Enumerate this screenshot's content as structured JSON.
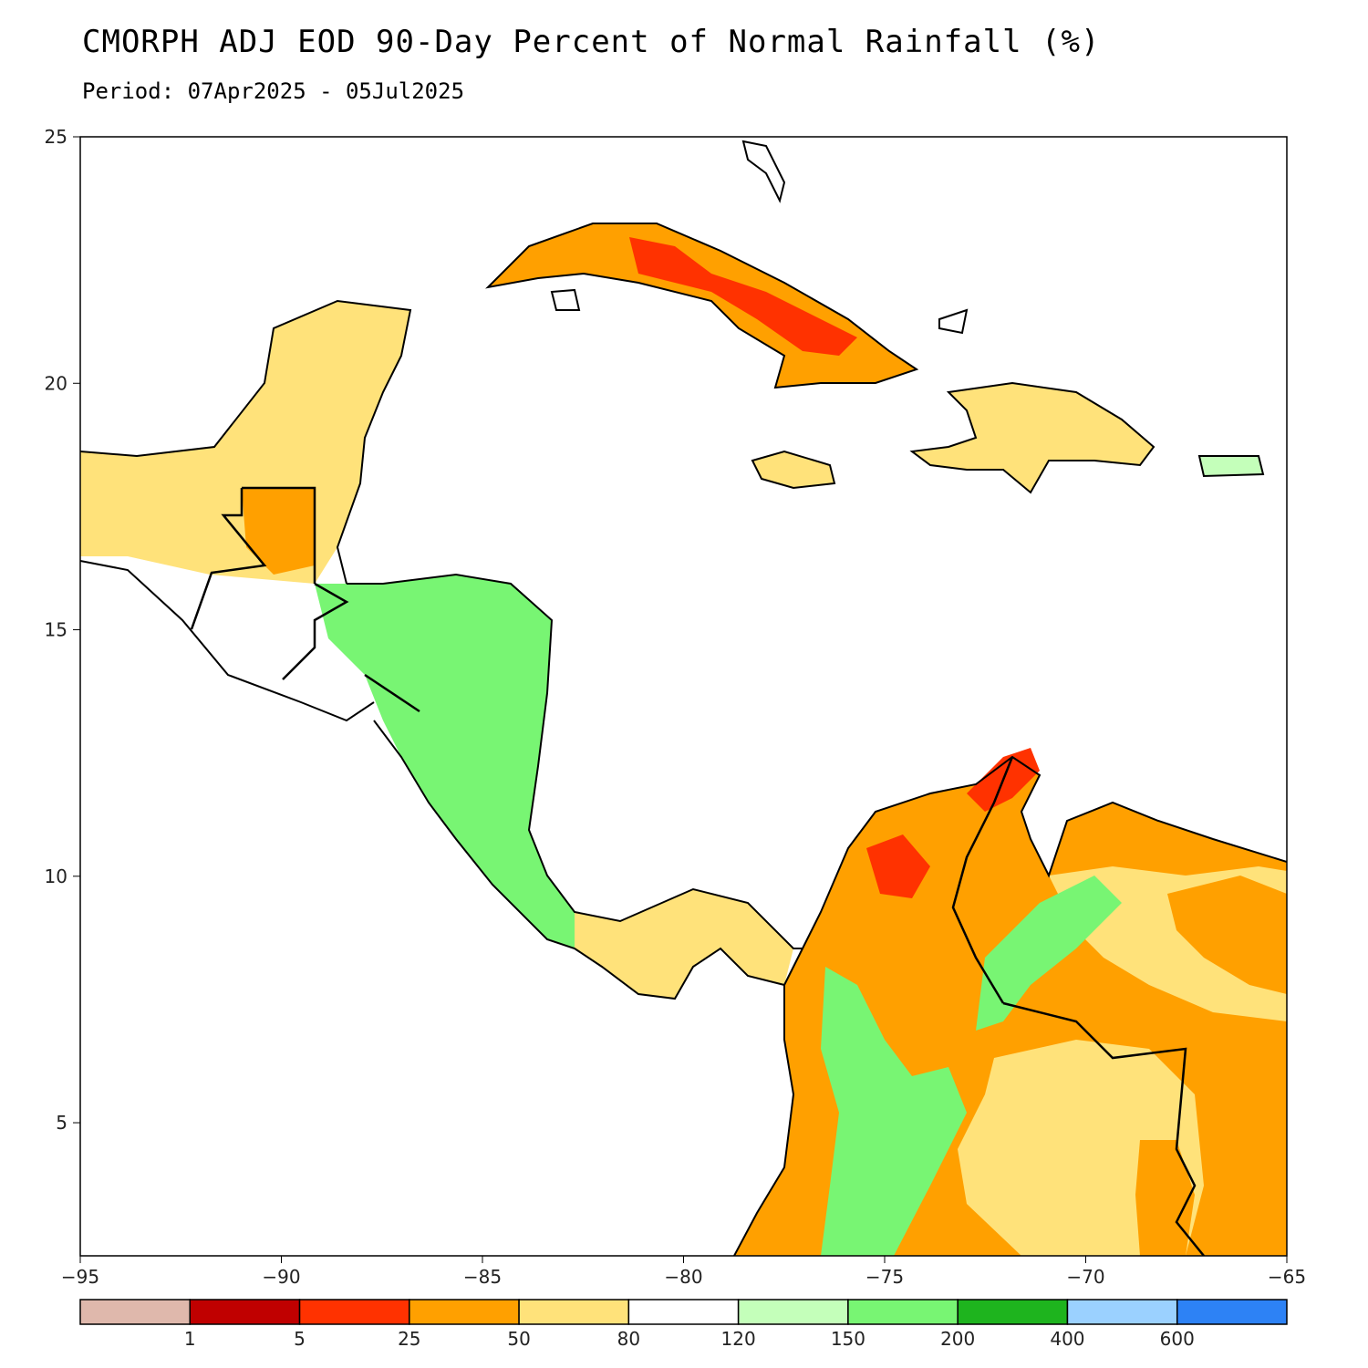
{
  "title": "CMORPH ADJ EOD 90-Day Percent of Normal Rainfall (%)",
  "subtitle": "Period: 07Apr2025 - 05Jul2025",
  "map": {
    "lon_range": [
      -95,
      -65
    ],
    "lat_range": [
      2.3,
      25
    ],
    "x_ticks": [
      {
        "value": -95,
        "label": "−95"
      },
      {
        "value": -90,
        "label": "−90"
      },
      {
        "value": -85,
        "label": "−85"
      },
      {
        "value": -80,
        "label": "−80"
      },
      {
        "value": -75,
        "label": "−75"
      },
      {
        "value": -70,
        "label": "−70"
      },
      {
        "value": -65,
        "label": "−65"
      }
    ],
    "y_ticks": [
      {
        "value": 25,
        "label": "25"
      },
      {
        "value": 20,
        "label": "20"
      },
      {
        "value": 15,
        "label": "15"
      },
      {
        "value": 10,
        "label": "10"
      },
      {
        "value": 5,
        "label": "5"
      }
    ]
  },
  "legend": {
    "colors": [
      "#dfb8ac",
      "#c00000",
      "#ff3200",
      "#ffa000",
      "#ffe27a",
      "#ffffff",
      "#c4ffba",
      "#78f573",
      "#1eb41e",
      "#9bd1ff",
      "#2d82f5"
    ],
    "labels": [
      "1",
      "5",
      "25",
      "50",
      "80",
      "120",
      "150",
      "200",
      "400",
      "600"
    ]
  },
  "regions": [
    {
      "name": "yucatan",
      "cat": 4
    },
    {
      "name": "central-america",
      "cat": 5
    },
    {
      "name": "honduras-nicaragua",
      "cat": 7
    },
    {
      "name": "cuba",
      "cat": 3
    },
    {
      "name": "cuba-east",
      "cat": 2
    },
    {
      "name": "hispaniola",
      "cat": 4
    },
    {
      "name": "jamaica",
      "cat": 4
    },
    {
      "name": "puerto-rico",
      "cat": 6
    },
    {
      "name": "panama",
      "cat": 4
    },
    {
      "name": "colombia-north",
      "cat": 3
    },
    {
      "name": "guajira",
      "cat": 2
    },
    {
      "name": "venezuela",
      "cat": 4
    },
    {
      "name": "andes-green",
      "cat": 7
    },
    {
      "name": "amazon-south",
      "cat": 4
    }
  ]
}
